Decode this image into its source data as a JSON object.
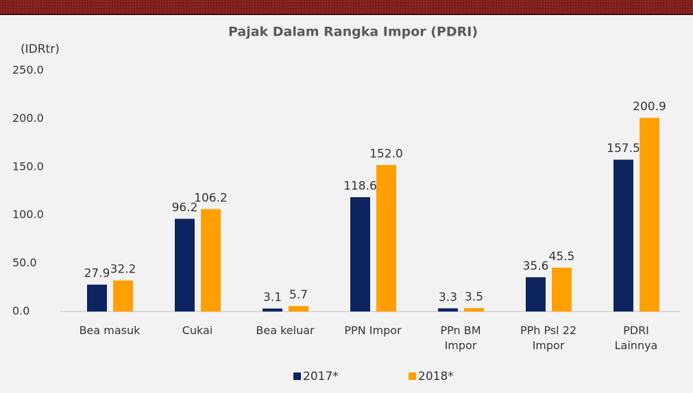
{
  "chart_data": {
    "type": "bar",
    "title": "Pajak Dalam Rangka Impor (PDRI)",
    "y_label": "(IDRtr)",
    "categories": [
      "Bea masuk",
      "Cukai",
      "Bea keluar",
      "PPN  Impor",
      "PPn BM Impor",
      "PPh Psl 22 Impor",
      "PDRI Lainnya"
    ],
    "series": [
      {
        "name": "2017*",
        "color": "#0d2461",
        "values": [
          27.9,
          96.2,
          3.1,
          118.6,
          3.3,
          35.6,
          157.5
        ]
      },
      {
        "name": "2018*",
        "color": "#ffa000",
        "values": [
          32.2,
          106.2,
          5.7,
          152.0,
          3.5,
          45.5,
          200.9
        ],
        "value_labels": [
          "32.2",
          "106.2",
          "5.7",
          "152.0",
          "3.5",
          "45.5",
          "200.9"
        ]
      }
    ],
    "ylim": [
      0,
      250
    ],
    "yticks": [
      {
        "value": 0,
        "label": "0.0"
      },
      {
        "value": 50,
        "label": "50.0"
      },
      {
        "value": 100,
        "label": "100.0"
      },
      {
        "value": 150,
        "label": "150.0"
      },
      {
        "value": 200,
        "label": "200.0"
      },
      {
        "value": 250,
        "label": "250.0"
      }
    ],
    "legend": "bottom",
    "grid": false
  }
}
